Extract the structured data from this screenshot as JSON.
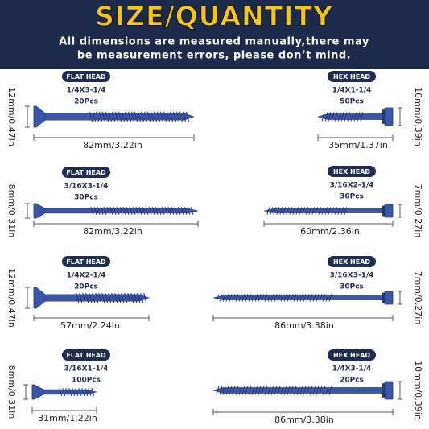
{
  "header": {
    "title": "SIZE/QUANTITY",
    "subtitle": [
      "All dimensions are measured manually,there may",
      "be measurement errors, please don’t mind."
    ]
  },
  "items": [
    {
      "head": "FLAT HEAD",
      "size": "1/4X3-1/4",
      "quantity": "20Pcs",
      "length": "82mm/3.22in",
      "height": "12mm/0.47in"
    },
    {
      "head": "FLAT HEAD",
      "size": "3/16X3-1/4",
      "quantity": "30Pcs",
      "length": "82mm/3.22in",
      "height": "8mm/0.31in"
    },
    {
      "head": "FLAT HEAD",
      "size": "1/4X2-1/4",
      "quantity": "20Pcs",
      "length": "57mm/2.24in",
      "height": "12mm/0.47in"
    },
    {
      "head": "FLAT HEAD",
      "size": "3/16X1-1/4",
      "quantity": "100Pcs",
      "length": "31mm/1.22in",
      "height": "8mm/0.31in"
    },
    {
      "head": "HEX HEAD",
      "size": "1/4X1-1/4",
      "quantity": "50Pcs",
      "length": "35mm/1.37in",
      "height": "10mm/0.39in"
    },
    {
      "head": "HEX HEAD",
      "size": "3/16X2-1/4",
      "quantity": "30Pcs",
      "length": "60mm/2.36in",
      "height": "7mm/0.27in"
    },
    {
      "head": "HEX HEAD",
      "size": "3/16X3-1/4",
      "quantity": "30Pcs",
      "length": "86mm/3.38in",
      "height": "7mm/0.27in"
    },
    {
      "head": "HEX HEAD",
      "size": "1/4X3-1/4",
      "quantity": "20Pcs",
      "length": "86mm/3.38in",
      "height": "10mm/0.39in"
    }
  ]
}
